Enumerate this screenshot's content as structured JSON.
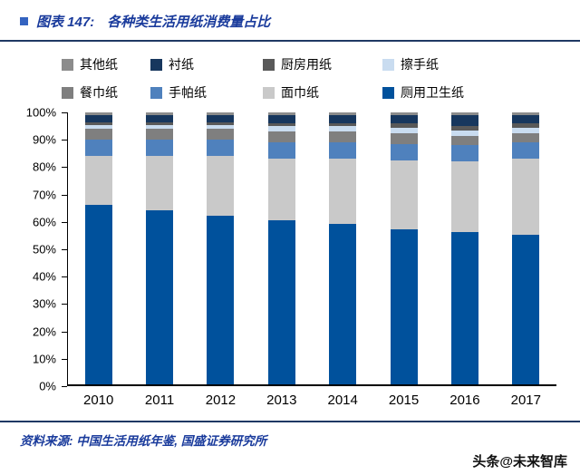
{
  "header": {
    "label": "图表 147:",
    "title": "各种类生活用纸消费量占比"
  },
  "footer": {
    "source": "资料来源: 中国生活用纸年鉴, 国盛证券研究所",
    "watermark": "头条@未来智库"
  },
  "chart_data": {
    "type": "bar",
    "stacked": true,
    "title": "各种类生活用纸消费量占比",
    "categories": [
      "2010",
      "2011",
      "2012",
      "2013",
      "2014",
      "2015",
      "2016",
      "2017"
    ],
    "series": [
      {
        "name": "厕用卫生纸",
        "color": "#00519C",
        "values": [
          66,
          64,
          62,
          60.5,
          59,
          57,
          56,
          55
        ]
      },
      {
        "name": "面巾纸",
        "color": "#C9C9C9",
        "values": [
          18,
          20,
          22,
          22.5,
          24,
          25.5,
          26,
          28
        ]
      },
      {
        "name": "手帕纸",
        "color": "#4F81BD",
        "values": [
          6,
          6,
          6,
          6,
          6,
          6,
          6,
          6
        ]
      },
      {
        "name": "餐巾纸",
        "color": "#7F7F7F",
        "values": [
          4,
          4,
          4,
          4,
          4,
          4,
          3.5,
          3.5
        ]
      },
      {
        "name": "擦手纸",
        "color": "#C9DCF0",
        "values": [
          1.5,
          1.5,
          1.5,
          2,
          2,
          2,
          2,
          2
        ]
      },
      {
        "name": "厨房用纸",
        "color": "#595959",
        "values": [
          1,
          1,
          1,
          1,
          1,
          1.5,
          1.5,
          1.5
        ]
      },
      {
        "name": "衬纸",
        "color": "#17375E",
        "values": [
          2.5,
          2.5,
          2.5,
          3,
          3,
          3,
          4,
          3
        ]
      },
      {
        "name": "其他纸",
        "color": "#8C8C8C",
        "values": [
          1,
          1,
          1,
          1,
          1,
          1,
          1,
          1
        ]
      }
    ],
    "ylim": [
      0,
      100
    ],
    "ytick_step": 10,
    "ytick_suffix": "%",
    "xlabel": "",
    "ylabel": "",
    "grid": false,
    "legend_position": "top",
    "legend_order": "reverse-of-stack"
  }
}
